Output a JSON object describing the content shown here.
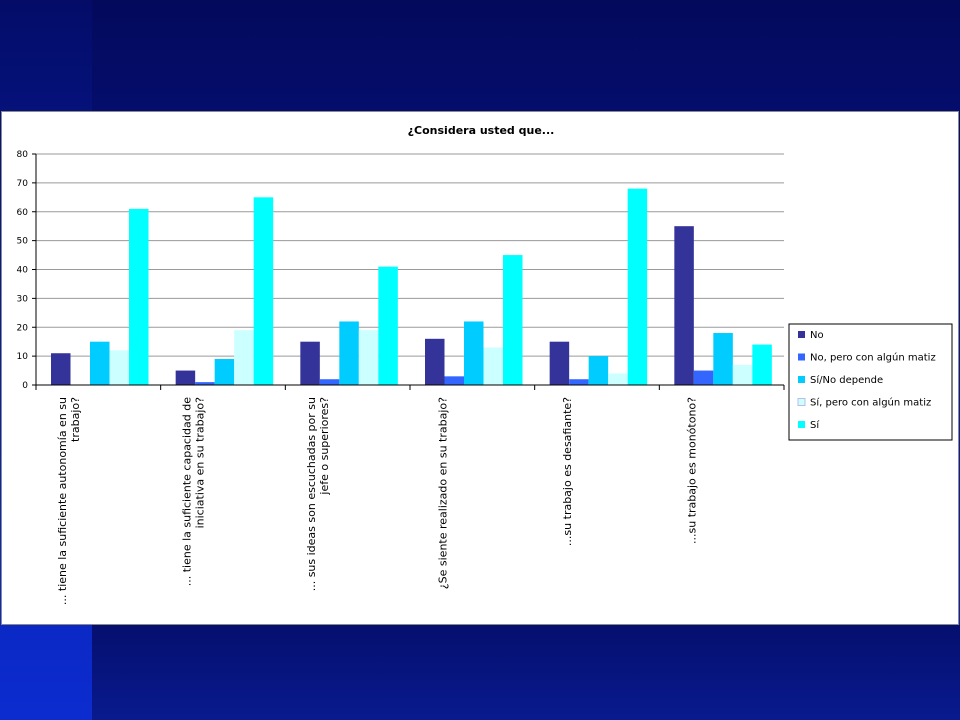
{
  "chart_data": {
    "type": "bar",
    "title": "¿Considera usted que...",
    "xlabel": "",
    "ylabel": "",
    "ylim": [
      0,
      80
    ],
    "yticks": [
      0,
      10,
      20,
      30,
      40,
      50,
      60,
      70,
      80
    ],
    "grid": true,
    "legend_position": "right",
    "categories": [
      [
        "... tiene la suficiente autonomía en su",
        "trabajo?"
      ],
      [
        "... tiene la suficiente capacidad de",
        "iniciativa en su trabajo?"
      ],
      [
        "... sus ideas son escuchadas por su",
        "jefe o superiores?"
      ],
      [
        "¿Se siente realizado en su trabajo?"
      ],
      [
        "...su trabajo es desafiante?"
      ],
      [
        "...su trabajo es monótono?"
      ]
    ],
    "series": [
      {
        "name": "No",
        "color": "#333399",
        "values": [
          11,
          5,
          15,
          16,
          15,
          55
        ]
      },
      {
        "name": "No, pero con algún matiz",
        "color": "#3366ff",
        "values": [
          0,
          1,
          2,
          3,
          2,
          5
        ]
      },
      {
        "name": "Sí/No depende",
        "color": "#00ccff",
        "values": [
          15,
          9,
          22,
          22,
          10,
          18
        ]
      },
      {
        "name": "Sí, pero con algún matiz",
        "color": "#ccffff",
        "values": [
          12,
          19,
          19,
          13,
          4,
          7
        ]
      },
      {
        "name": "Sí",
        "color": "#00ffff",
        "values": [
          61,
          65,
          41,
          45,
          68,
          14
        ]
      }
    ]
  }
}
